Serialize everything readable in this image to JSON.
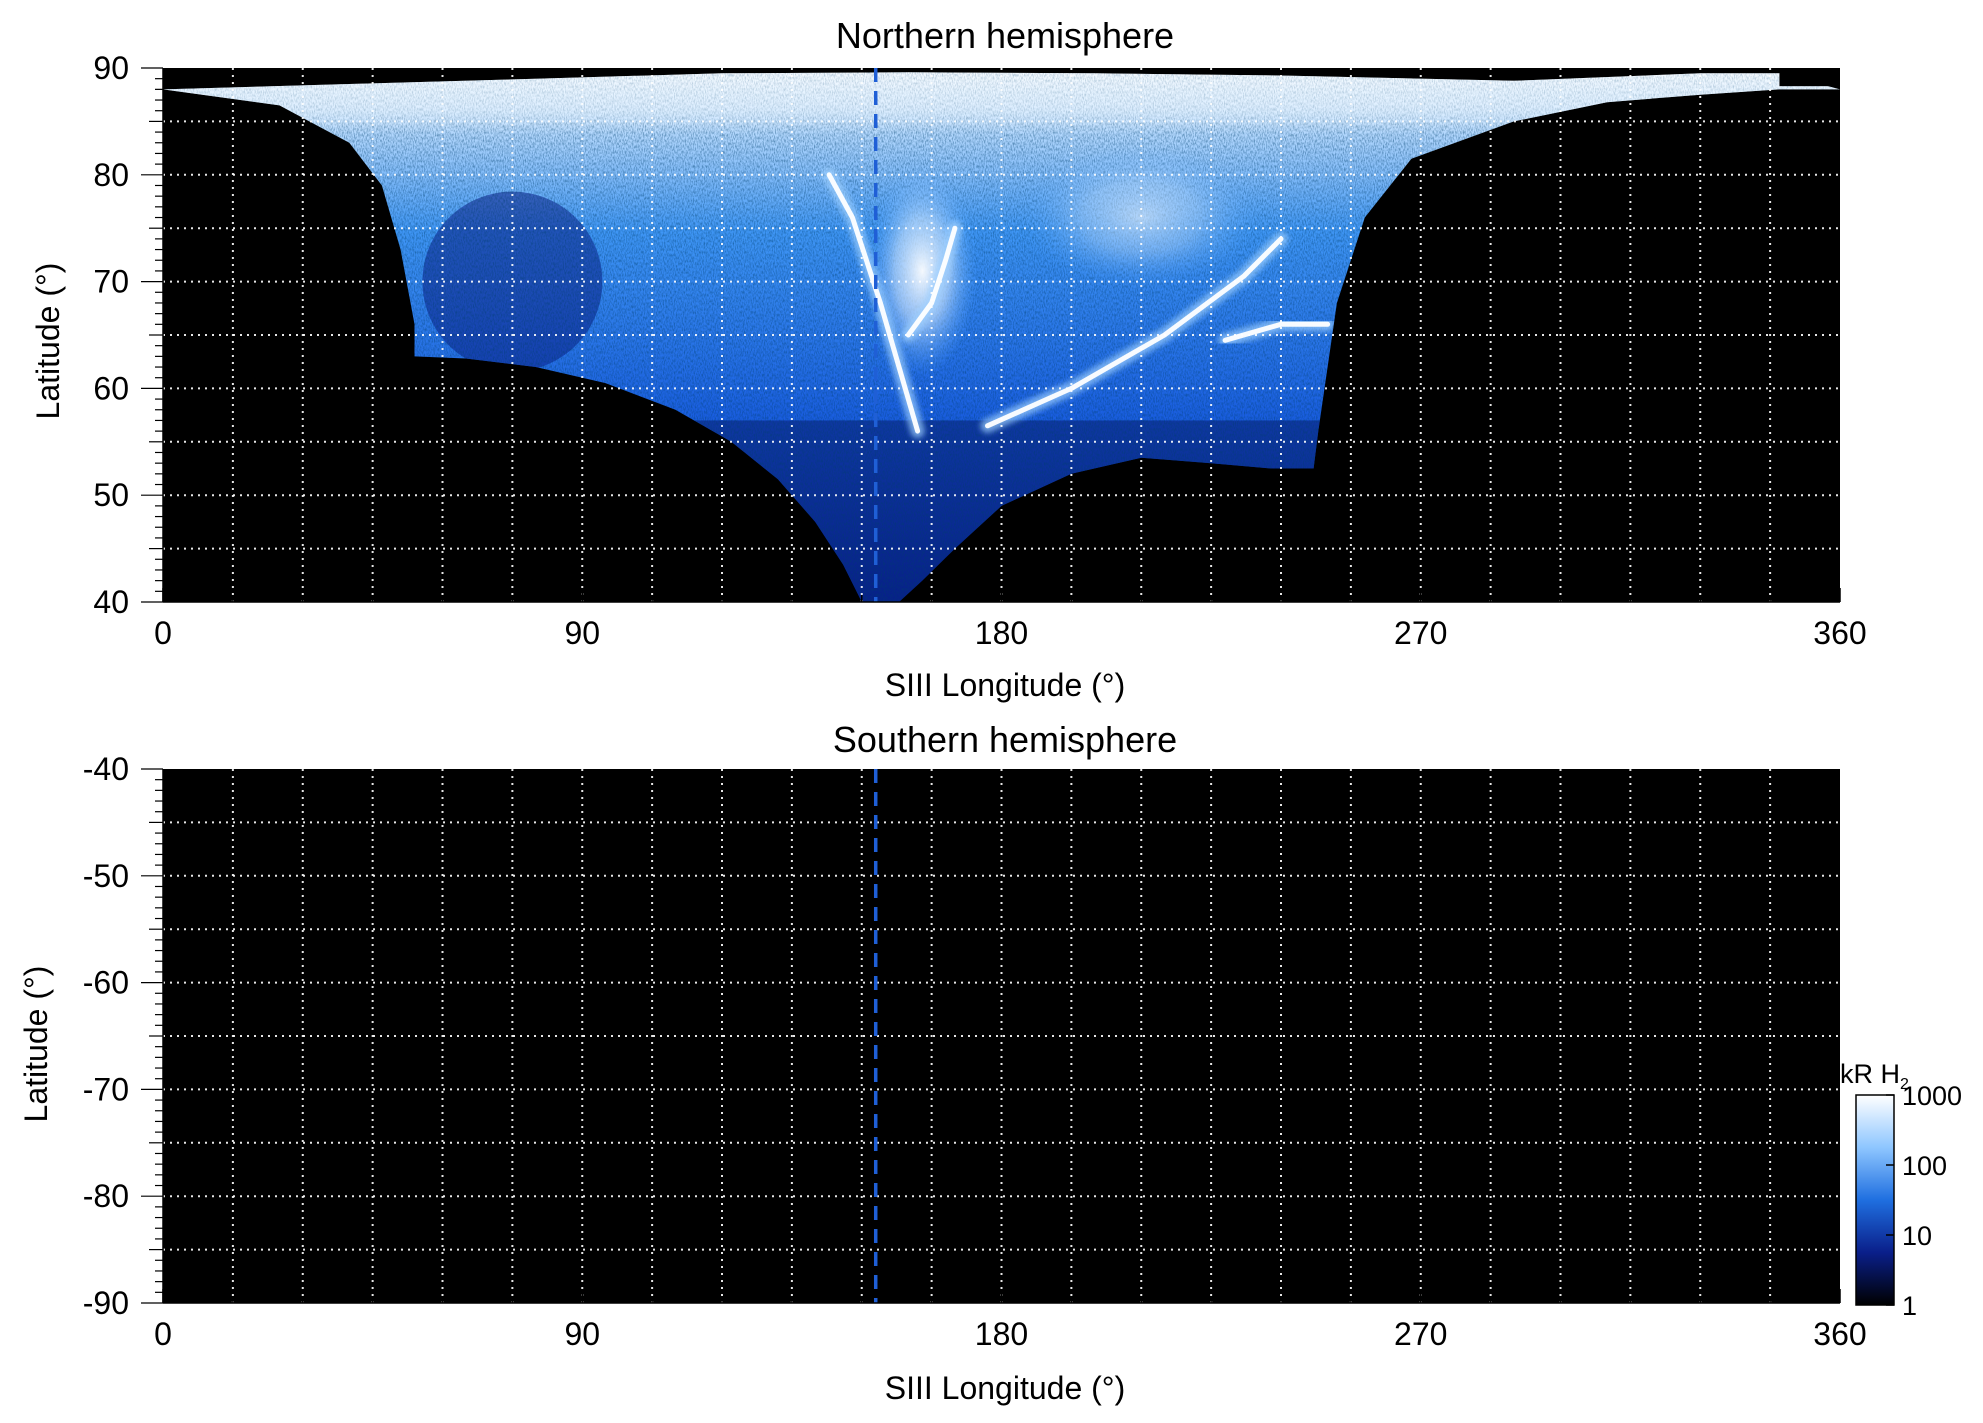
{
  "chart_data": [
    {
      "type": "heatmap",
      "title": "Northern hemisphere",
      "xlabel": "SIII Longitude (°)",
      "ylabel": "Latitude (°)",
      "xlim": [
        0,
        360
      ],
      "ylim": [
        40,
        90
      ],
      "xticks": [
        0,
        90,
        180,
        270,
        360
      ],
      "yticks": [
        40,
        50,
        60,
        70,
        80,
        90
      ],
      "grid": true,
      "reference_line": {
        "x": 153,
        "style": "dashed",
        "color": "#1f5fd6"
      },
      "emission_region": {
        "description_color_scale": "log",
        "lower_boundary": [
          [
            54,
            63
          ],
          [
            65,
            62.8
          ],
          [
            80,
            62
          ],
          [
            95,
            60.5
          ],
          [
            110,
            58
          ],
          [
            122,
            55
          ],
          [
            132,
            51.5
          ],
          [
            140,
            47.5
          ],
          [
            146,
            43.5
          ],
          [
            150,
            40
          ],
          [
            158,
            40
          ],
          [
            163,
            42
          ],
          [
            170,
            45
          ],
          [
            180,
            49
          ],
          [
            195,
            52
          ],
          [
            210,
            53.5
          ],
          [
            225,
            53
          ],
          [
            238,
            52.5
          ],
          [
            247,
            52.5
          ]
        ],
        "upper_boundary": [
          [
            0,
            88
          ],
          [
            40,
            88.5
          ],
          [
            80,
            89
          ],
          [
            120,
            89.5
          ],
          [
            160,
            89.6
          ],
          [
            200,
            89.5
          ],
          [
            240,
            89.3
          ],
          [
            290,
            88.8
          ],
          [
            330,
            89.5
          ],
          [
            347,
            89.5
          ],
          [
            360,
            88
          ]
        ],
        "polar_cap_edge": [
          [
            0,
            88
          ],
          [
            25,
            86.5
          ],
          [
            40,
            83
          ],
          [
            47,
            79
          ],
          [
            51,
            73
          ],
          [
            54,
            66
          ],
          [
            54,
            63
          ]
        ],
        "east_edge": [
          [
            247,
            52.5
          ],
          [
            248,
            56
          ],
          [
            250,
            62
          ],
          [
            252,
            68
          ],
          [
            258,
            76
          ],
          [
            268,
            81.5
          ],
          [
            290,
            85
          ],
          [
            310,
            86.8
          ],
          [
            330,
            87.5
          ],
          [
            347,
            88
          ],
          [
            360,
            88
          ]
        ],
        "arcs": [
          {
            "name": "main_oval_west",
            "points": [
              [
                143,
                80
              ],
              [
                148,
                76
              ],
              [
                154,
                68
              ],
              [
                158,
                62
              ],
              [
                162,
                56
              ]
            ]
          },
          {
            "name": "main_oval_east",
            "points": [
              [
                177,
                56.5
              ],
              [
                195,
                60
              ],
              [
                215,
                65
              ],
              [
                232,
                70.5
              ],
              [
                240,
                74
              ]
            ]
          },
          {
            "name": "dusk_arc",
            "points": [
              [
                228,
                64.5
              ],
              [
                240,
                66
              ],
              [
                250,
                66
              ]
            ]
          },
          {
            "name": "bright_core",
            "points": [
              [
                160,
                65
              ],
              [
                165,
                68
              ],
              [
                168,
                72
              ],
              [
                170,
                75
              ]
            ]
          }
        ]
      }
    },
    {
      "type": "heatmap",
      "title": "Southern hemisphere",
      "xlabel": "SIII Longitude (°)",
      "ylabel": "Latitude (°)",
      "xlim": [
        0,
        360
      ],
      "ylim": [
        -90,
        -40
      ],
      "xticks": [
        0,
        90,
        180,
        270,
        360
      ],
      "yticks": [
        -40,
        -50,
        -60,
        -70,
        -80,
        -90
      ],
      "grid": true,
      "reference_line": {
        "x": 153,
        "style": "dashed",
        "color": "#1f5fd6"
      }
    }
  ],
  "colorbar": {
    "label": "kR H",
    "label_subscript": "2",
    "scale": "log",
    "range": [
      1,
      1000
    ],
    "ticks": [
      1,
      10,
      100,
      1000
    ],
    "tick_labels": [
      "1",
      "10",
      "100",
      "1000"
    ],
    "colors": [
      "#000000",
      "#0a1f8a",
      "#1f6fe0",
      "#8ec6ff",
      "#ffffff"
    ]
  }
}
